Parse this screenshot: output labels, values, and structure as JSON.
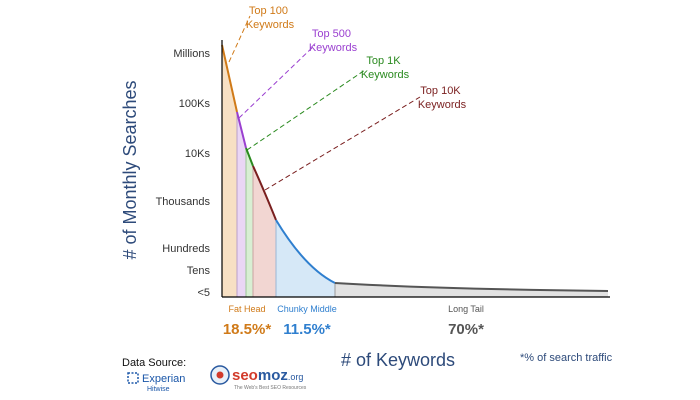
{
  "chart_data": {
    "type": "area",
    "xlabel": "# of Keywords",
    "ylabel": "# of Monthly Searches",
    "y_ticks": [
      "Millions",
      "100Ks",
      "10Ks",
      "Thousands",
      "Hundreds",
      "Tens",
      "<5"
    ],
    "callouts": [
      {
        "label": "Top 100\nKeywords",
        "color": "#d07a18"
      },
      {
        "label": "Top 500\nKeywords",
        "color": "#9a3fd0"
      },
      {
        "label": "Top 1K\nKeywords",
        "color": "#2a8a1f"
      },
      {
        "label": "Top 10K\nKeywords",
        "color": "#7a1f1f"
      }
    ],
    "segments": [
      {
        "name": "Fat Head",
        "share": "18.5%*",
        "color": "#d07a18"
      },
      {
        "name": "Chunky Middle",
        "share": "11.5%*",
        "color": "#2f7fcf"
      },
      {
        "name": "Long Tail",
        "share": "70%*",
        "color": "#555555"
      }
    ],
    "footnote": "*% of search traffic"
  },
  "data_source": {
    "label": "Data Source:",
    "experian": "Experian",
    "hitwise": "Hitwise"
  },
  "seomoz": {
    "name_a": "seo",
    "name_b": "moz",
    "name_c": ".org",
    "tagline": "The Web's Best SEO Resources"
  }
}
